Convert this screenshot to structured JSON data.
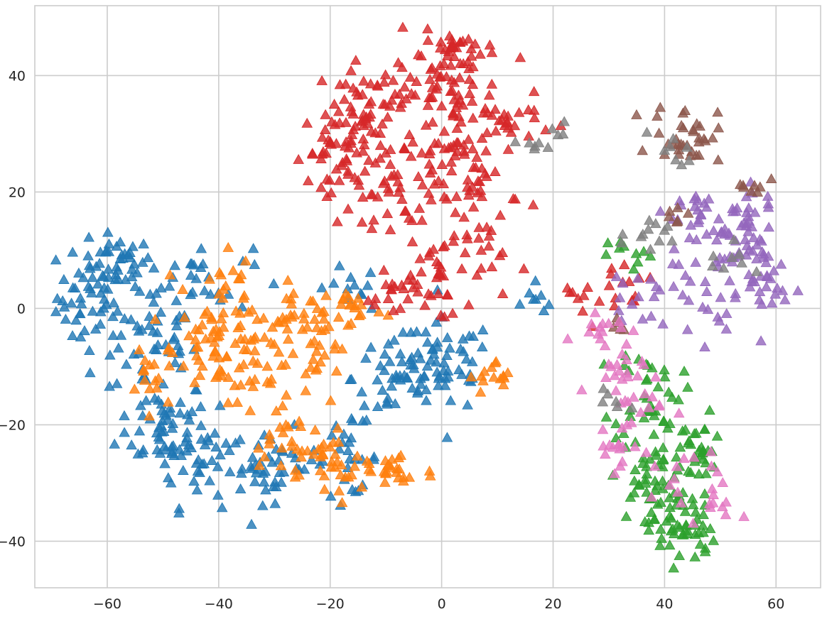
{
  "chart_data": {
    "type": "scatter",
    "title": "",
    "xlabel": "",
    "ylabel": "",
    "xlim": [
      -73,
      68
    ],
    "ylim": [
      -48,
      52
    ],
    "x_ticks": [
      -60,
      -40,
      -20,
      0,
      20,
      40,
      60
    ],
    "y_ticks": [
      -40,
      -20,
      0,
      20,
      40
    ],
    "x_tick_labels": [
      "−60",
      "−40",
      "−20",
      "0",
      "20",
      "40",
      "60"
    ],
    "y_tick_labels": [
      "−40",
      "−20",
      "0",
      "20",
      "40"
    ],
    "grid": true,
    "marker": "triangle",
    "opacity": 0.8,
    "legend": "none",
    "background": "#ffffff",
    "grid_color": "#cccccc",
    "series": [
      {
        "color": "#1f77b4",
        "clusters": [
          {
            "cx": -62,
            "cy": 2,
            "sx": 3.5,
            "sy": 5,
            "n": 55
          },
          {
            "cx": -58,
            "cy": 8,
            "sx": 3,
            "sy": 2,
            "n": 25
          },
          {
            "cx": -52,
            "cy": -6,
            "sx": 4,
            "sy": 5,
            "n": 45
          },
          {
            "cx": -50,
            "cy": -20,
            "sx": 4,
            "sy": 4,
            "n": 50
          },
          {
            "cx": -43,
            "cy": -26,
            "sx": 4,
            "sy": 4,
            "n": 40
          },
          {
            "cx": -44,
            "cy": 5,
            "sx": 5,
            "sy": 3,
            "n": 30
          },
          {
            "cx": -30,
            "cy": -27,
            "sx": 4,
            "sy": 3,
            "n": 40
          },
          {
            "cx": -17,
            "cy": -26,
            "sx": 3,
            "sy": 3,
            "n": 25
          },
          {
            "cx": -8,
            "cy": -12,
            "sx": 4,
            "sy": 4,
            "n": 50
          },
          {
            "cx": 1,
            "cy": -10,
            "sx": 4,
            "sy": 4,
            "n": 45
          },
          {
            "cx": -17,
            "cy": 3,
            "sx": 3,
            "sy": 2,
            "n": 12
          },
          {
            "cx": 18,
            "cy": 2,
            "sx": 1.5,
            "sy": 1.5,
            "n": 8
          }
        ]
      },
      {
        "color": "#ff7f0e",
        "clusters": [
          {
            "cx": -40,
            "cy": -6,
            "sx": 4,
            "sy": 4,
            "n": 60
          },
          {
            "cx": -30,
            "cy": -8,
            "sx": 5,
            "sy": 4,
            "n": 40
          },
          {
            "cx": -25,
            "cy": -2,
            "sx": 3,
            "sy": 3,
            "n": 25
          },
          {
            "cx": -28,
            "cy": -22,
            "sx": 4,
            "sy": 3,
            "n": 25
          },
          {
            "cx": -20,
            "cy": -28,
            "sx": 3,
            "sy": 3,
            "n": 30
          },
          {
            "cx": -9,
            "cy": -28,
            "sx": 4,
            "sy": 2,
            "n": 25
          },
          {
            "cx": -16,
            "cy": 0,
            "sx": 3,
            "sy": 2,
            "n": 20
          },
          {
            "cx": -52,
            "cy": -10,
            "sx": 2.5,
            "sy": 3,
            "n": 15
          },
          {
            "cx": 10,
            "cy": -12,
            "sx": 2.5,
            "sy": 1.5,
            "n": 15
          },
          {
            "cx": -40,
            "cy": 5,
            "sx": 3,
            "sy": 3,
            "n": 15
          },
          {
            "cx": -21,
            "cy": -8,
            "sx": 2,
            "sy": 2,
            "n": 10
          }
        ]
      },
      {
        "color": "#2ca02c",
        "clusters": [
          {
            "cx": 37,
            "cy": -14,
            "sx": 3,
            "sy": 4,
            "n": 35
          },
          {
            "cx": 38,
            "cy": -30,
            "sx": 4,
            "sy": 4,
            "n": 60
          },
          {
            "cx": 43,
            "cy": -38,
            "sx": 3,
            "sy": 3,
            "n": 40
          },
          {
            "cx": 46,
            "cy": -24,
            "sx": 2.5,
            "sy": 3,
            "n": 25
          },
          {
            "cx": 34,
            "cy": 9,
            "sx": 2,
            "sy": 1.5,
            "n": 10
          }
        ]
      },
      {
        "color": "#d62728",
        "clusters": [
          {
            "cx": -12,
            "cy": 33,
            "sx": 5,
            "sy": 5,
            "n": 70
          },
          {
            "cx": 1,
            "cy": 37,
            "sx": 5,
            "sy": 5,
            "n": 70
          },
          {
            "cx": -19,
            "cy": 27,
            "sx": 3,
            "sy": 3,
            "n": 30
          },
          {
            "cx": 6,
            "cy": 22,
            "sx": 4,
            "sy": 4,
            "n": 45
          },
          {
            "cx": -8,
            "cy": 20,
            "sx": 5,
            "sy": 3,
            "n": 40
          },
          {
            "cx": 3,
            "cy": 44,
            "sx": 3,
            "sy": 2,
            "n": 25
          },
          {
            "cx": 1,
            "cy": 8,
            "sx": 5,
            "sy": 4,
            "n": 40
          },
          {
            "cx": -6,
            "cy": 2,
            "sx": 4,
            "sy": 2,
            "n": 25
          },
          {
            "cx": 12,
            "cy": 32,
            "sx": 4,
            "sy": 2,
            "n": 25
          },
          {
            "cx": 26,
            "cy": 3,
            "sx": 3,
            "sy": 2.5,
            "n": 12
          },
          {
            "cx": 34,
            "cy": 2,
            "sx": 3,
            "sy": 2,
            "n": 10
          },
          {
            "cx": -19,
            "cy": 22,
            "sx": 2,
            "sy": 2,
            "n": 8
          }
        ]
      },
      {
        "color": "#9467bd",
        "clusters": [
          {
            "cx": 52,
            "cy": 10,
            "sx": 4,
            "sy": 4,
            "n": 40
          },
          {
            "cx": 58,
            "cy": 5,
            "sx": 2,
            "sy": 5,
            "n": 30
          },
          {
            "cx": 46,
            "cy": 17,
            "sx": 3,
            "sy": 2,
            "n": 20
          },
          {
            "cx": 47,
            "cy": 0,
            "sx": 3,
            "sy": 3,
            "n": 20
          },
          {
            "cx": 35,
            "cy": 2,
            "sx": 3,
            "sy": 2,
            "n": 15
          },
          {
            "cx": 55,
            "cy": 17,
            "sx": 2,
            "sy": 2,
            "n": 12
          }
        ]
      },
      {
        "color": "#8c564b",
        "clusters": [
          {
            "cx": 44,
            "cy": 30,
            "sx": 3,
            "sy": 2.5,
            "n": 35
          },
          {
            "cx": 56,
            "cy": 21,
            "sx": 1.5,
            "sy": 1,
            "n": 8
          },
          {
            "cx": 42,
            "cy": 17,
            "sx": 1.5,
            "sy": 1.5,
            "n": 6
          },
          {
            "cx": 32,
            "cy": -4,
            "sx": 1.5,
            "sy": 1.5,
            "n": 5
          }
        ]
      },
      {
        "color": "#e377c2",
        "clusters": [
          {
            "cx": 29,
            "cy": -3,
            "sx": 2.5,
            "sy": 1.5,
            "n": 15
          },
          {
            "cx": 31,
            "cy": -14,
            "sx": 2.5,
            "sy": 4,
            "n": 20
          },
          {
            "cx": 31,
            "cy": -24,
            "sx": 2,
            "sy": 3,
            "n": 15
          },
          {
            "cx": 37,
            "cy": -16,
            "sx": 2,
            "sy": 2,
            "n": 10
          },
          {
            "cx": 43,
            "cy": -31,
            "sx": 4,
            "sy": 3,
            "n": 15
          },
          {
            "cx": 49,
            "cy": -35,
            "sx": 2,
            "sy": 2,
            "n": 8
          }
        ]
      },
      {
        "color": "#7f7f7f",
        "clusters": [
          {
            "cx": 18,
            "cy": 29,
            "sx": 2,
            "sy": 1.5,
            "n": 10
          },
          {
            "cx": 37,
            "cy": 12,
            "sx": 2.5,
            "sy": 1.5,
            "n": 12
          },
          {
            "cx": 42,
            "cy": 27,
            "sx": 2,
            "sy": 2,
            "n": 8
          },
          {
            "cx": 52,
            "cy": 9,
            "sx": 3,
            "sy": 2,
            "n": 8
          },
          {
            "cx": 30,
            "cy": -17,
            "sx": 2,
            "sy": 2,
            "n": 6
          }
        ]
      }
    ]
  }
}
